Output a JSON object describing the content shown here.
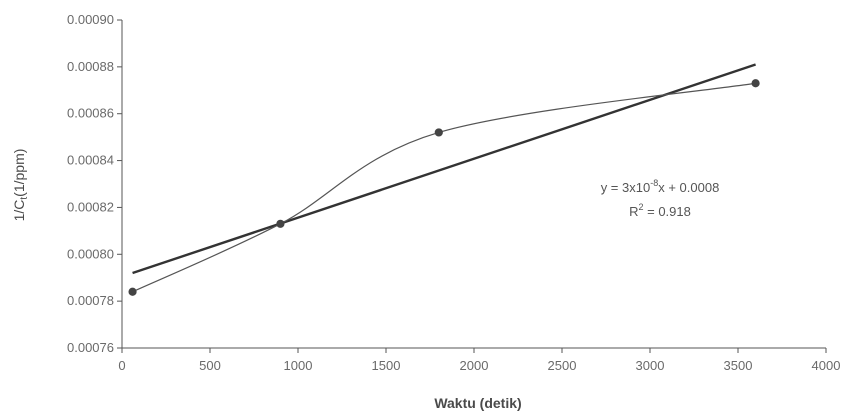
{
  "chart_data": {
    "type": "scatter",
    "title": "",
    "xlabel": "Waktu (detik)",
    "ylabel_parts": {
      "prefix": "1/C",
      "sub": "t",
      "suffix": "(1/ppm)"
    },
    "xlim": [
      0,
      4000
    ],
    "ylim": [
      0.00076,
      0.0009
    ],
    "xticks": [
      "0",
      "500",
      "1000",
      "1500",
      "2000",
      "2500",
      "3000",
      "3500",
      "4000"
    ],
    "yticks": [
      "0.00076",
      "0.00078",
      "0.00080",
      "0.00082",
      "0.00084",
      "0.00086",
      "0.00088",
      "0.00090"
    ],
    "grid": false,
    "legend": "none",
    "series": [
      {
        "x": [
          60,
          900,
          1800,
          3600
        ],
        "y": [
          0.000784,
          0.000813,
          0.000852,
          0.000873
        ],
        "marker": "circle",
        "line": "smooth",
        "color": "#555555"
      }
    ],
    "trendline": {
      "x": [
        60,
        3600
      ],
      "y": [
        0.000792,
        0.000881
      ],
      "color": "#333333"
    },
    "annotation": {
      "equation": {
        "prefix": "y = 3x10",
        "sup": "-8",
        "suffix": "x + 0.0008"
      },
      "r2": {
        "prefix": "R",
        "sup": "2",
        "suffix": " = 0.918"
      }
    }
  }
}
